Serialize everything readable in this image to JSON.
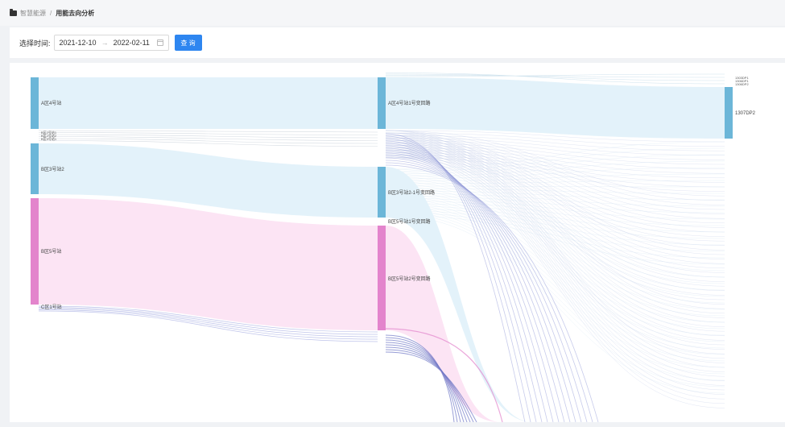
{
  "breadcrumb": {
    "home": "智慧能源",
    "separator": "/",
    "current": "用能去向分析"
  },
  "filter": {
    "label": "选择时间:",
    "start_date": "2021-12-10",
    "arrow": "→",
    "end_date": "2022-02-11",
    "query_label": "查 询"
  },
  "colors": {
    "blue_node": "#6cb6d8",
    "blue_band": "#e3f2fa",
    "pink_node": "#e384cc",
    "pink_band": "#fce4f4",
    "lavender": "#c4c8ee",
    "accent": "#2e86f0"
  },
  "sankey": {
    "level1": [
      "A区4号站",
      "B区2号站1",
      "B区2号站2",
      "B区5号站1",
      "B区3号站2",
      "B区5号站",
      "C区1号站"
    ],
    "level2": [
      "A区4号站1号变回路",
      "B区3号站2-1号变回路",
      "B区5号站1号变回路",
      "B区5号站2号变回路"
    ],
    "level3_main": "1307DP2",
    "level3_top": [
      "1303DP1",
      "1306DP1",
      "1306DP2"
    ]
  }
}
